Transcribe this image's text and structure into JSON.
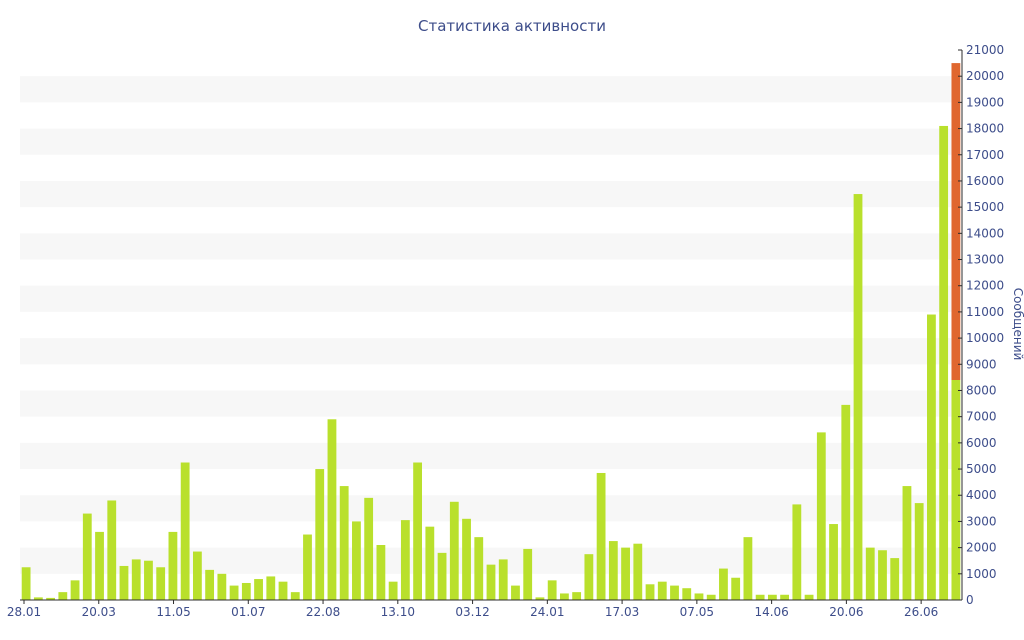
{
  "chart_data": {
    "type": "bar",
    "title": "Статистика активности",
    "ylabel": "Сообщений",
    "ylim": [
      0,
      21000
    ],
    "y_ticks": [
      "0",
      "1000",
      "2000",
      "3000",
      "4000",
      "5000",
      "6000",
      "7000",
      "8000",
      "9000",
      "10000",
      "11000",
      "12000",
      "13000",
      "14000",
      "15000",
      "16000",
      "17000",
      "18000",
      "19000",
      "20000",
      "21000"
    ],
    "x_tick_labels": [
      "28.01",
      "20.03",
      "11.05",
      "01.07",
      "22.08",
      "13.10",
      "03.12",
      "24.01",
      "17.03",
      "07.05",
      "14.06",
      "20.06",
      "26.06"
    ],
    "y_axis_position": "right",
    "grid": "alternating horizontal bands",
    "colors": {
      "bar": "#b9e02c",
      "highlight": "#e0672f",
      "text": "#3d4d8a",
      "band": "#f7f7f7"
    },
    "values": [
      1250,
      100,
      80,
      300,
      750,
      3300,
      2600,
      3800,
      1300,
      1550,
      1500,
      1250,
      2600,
      5250,
      1850,
      1150,
      1000,
      550,
      650,
      800,
      900,
      700,
      300,
      2500,
      5000,
      6900,
      4350,
      3000,
      3900,
      2100,
      700,
      3050,
      5250,
      2800,
      1800,
      3750,
      3100,
      2400,
      1350,
      1550,
      550,
      1950,
      100,
      750,
      250,
      300,
      1750,
      4850,
      2250,
      2000,
      2150,
      600,
      700,
      550,
      450,
      250,
      200,
      1200,
      850,
      2400,
      200,
      200,
      200,
      3650,
      200,
      6400,
      2900,
      7450,
      15500,
      2000,
      1900,
      1600,
      4350,
      3700,
      10900,
      18100,
      20500
    ],
    "highlight": {
      "index": 76,
      "from": 8400,
      "to": 20500
    }
  }
}
